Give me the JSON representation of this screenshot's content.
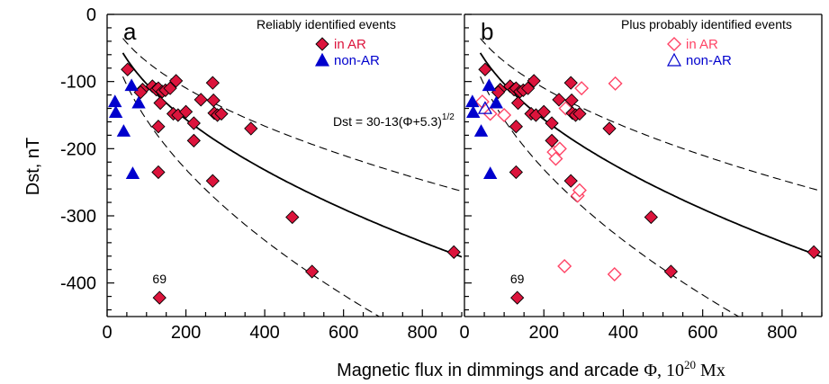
{
  "chart_data": {
    "type": "scatter",
    "xlabel": "Magnetic flux in dimmings and arcade",
    "xlabel_symbol": "Φ, 10",
    "xlabel_exponent": "20",
    "xlabel_unit": " Mx",
    "ylabel": "Dst, nT",
    "xlim": [
      0,
      900
    ],
    "ylim": [
      -450,
      0
    ],
    "x_ticks": [
      0,
      200,
      400,
      600,
      800
    ],
    "y_ticks": [
      0,
      -100,
      -200,
      -300,
      -400
    ],
    "fit": {
      "label_main": "Dst = 30-13(Φ+5.3)",
      "label_exponent": "1/2",
      "a": 30,
      "b": -13,
      "c": 5.3,
      "upper_factor": 0.75,
      "lower_factor": 1.4
    },
    "colors": {
      "in_ar": "#dc143c",
      "in_ar_edge": "#000000",
      "non_ar": "#0000cd",
      "in_ar_probable": "#ff4466",
      "non_ar_probable": "#0000cd"
    },
    "panels": [
      {
        "letter": "a",
        "legend_title": "Reliably identified events",
        "legend_in_ar": "in AR",
        "legend_non_ar": "non-AR",
        "legend_open": false,
        "annotation": "69",
        "annotation_point": [
          133,
          -422
        ],
        "in_ar": [
          [
            52,
            -82
          ],
          [
            90,
            -112
          ],
          [
            85,
            -116
          ],
          [
            115,
            -107
          ],
          [
            125,
            -112
          ],
          [
            130,
            -110
          ],
          [
            135,
            -132
          ],
          [
            140,
            -115
          ],
          [
            148,
            -113
          ],
          [
            160,
            -110
          ],
          [
            175,
            -99
          ],
          [
            168,
            -148
          ],
          [
            180,
            -150
          ],
          [
            130,
            -167
          ],
          [
            130,
            -235
          ],
          [
            200,
            -145
          ],
          [
            220,
            -162
          ],
          [
            220,
            -188
          ],
          [
            238,
            -127
          ],
          [
            268,
            -102
          ],
          [
            270,
            -128
          ],
          [
            272,
            -147
          ],
          [
            280,
            -150
          ],
          [
            290,
            -148
          ],
          [
            268,
            -248
          ],
          [
            365,
            -170
          ],
          [
            470,
            -302
          ],
          [
            520,
            -383
          ],
          [
            133,
            -422
          ],
          [
            880,
            -354
          ]
        ],
        "non_ar": [
          [
            20,
            -130
          ],
          [
            22,
            -146
          ],
          [
            62,
            -106
          ],
          [
            80,
            -132
          ],
          [
            42,
            -174
          ],
          [
            65,
            -237
          ]
        ],
        "in_ar_probable": [],
        "non_ar_probable": []
      },
      {
        "letter": "b",
        "legend_title": "Plus probably identified events",
        "legend_in_ar": "in AR",
        "legend_non_ar": "non-AR",
        "legend_open": true,
        "annotation": "69",
        "annotation_point": [
          133,
          -422
        ],
        "in_ar": [
          [
            52,
            -82
          ],
          [
            90,
            -112
          ],
          [
            85,
            -116
          ],
          [
            115,
            -107
          ],
          [
            125,
            -112
          ],
          [
            130,
            -110
          ],
          [
            135,
            -132
          ],
          [
            140,
            -115
          ],
          [
            148,
            -113
          ],
          [
            160,
            -110
          ],
          [
            175,
            -99
          ],
          [
            168,
            -148
          ],
          [
            180,
            -150
          ],
          [
            130,
            -167
          ],
          [
            130,
            -235
          ],
          [
            200,
            -145
          ],
          [
            220,
            -162
          ],
          [
            220,
            -188
          ],
          [
            238,
            -127
          ],
          [
            268,
            -102
          ],
          [
            270,
            -128
          ],
          [
            272,
            -147
          ],
          [
            280,
            -150
          ],
          [
            290,
            -148
          ],
          [
            268,
            -248
          ],
          [
            365,
            -170
          ],
          [
            470,
            -302
          ],
          [
            520,
            -383
          ],
          [
            133,
            -422
          ],
          [
            880,
            -354
          ]
        ],
        "non_ar": [
          [
            20,
            -130
          ],
          [
            22,
            -146
          ],
          [
            62,
            -106
          ],
          [
            80,
            -132
          ],
          [
            42,
            -174
          ],
          [
            65,
            -237
          ]
        ],
        "in_ar_probable": [
          [
            45,
            -130
          ],
          [
            65,
            -148
          ],
          [
            100,
            -150
          ],
          [
            225,
            -205
          ],
          [
            230,
            -215
          ],
          [
            240,
            -200
          ],
          [
            255,
            -140
          ],
          [
            285,
            -270
          ],
          [
            290,
            -262
          ],
          [
            295,
            -110
          ],
          [
            380,
            -103
          ],
          [
            252,
            -375
          ],
          [
            378,
            -387
          ]
        ],
        "non_ar_probable": [
          [
            52,
            -140
          ]
        ]
      }
    ]
  }
}
